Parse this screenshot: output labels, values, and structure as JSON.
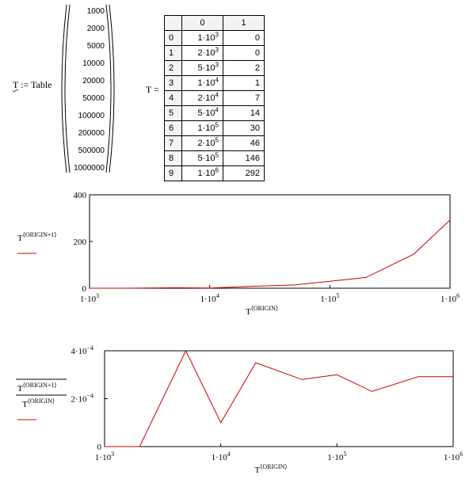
{
  "definition": {
    "var": "T",
    "assign": ":=",
    "func": "Table",
    "values": [
      "1000",
      "2000",
      "5000",
      "10000",
      "20000",
      "50000",
      "100000",
      "200000",
      "500000",
      "1000000"
    ]
  },
  "result": {
    "label": "T =",
    "header": [
      "0",
      "1"
    ],
    "rows": [
      {
        "i": "0",
        "a": "1·10",
        "ae": "3",
        "b": "0"
      },
      {
        "i": "1",
        "a": "2·10",
        "ae": "3",
        "b": "0"
      },
      {
        "i": "2",
        "a": "5·10",
        "ae": "3",
        "b": "2"
      },
      {
        "i": "3",
        "a": "1·10",
        "ae": "4",
        "b": "1"
      },
      {
        "i": "4",
        "a": "2·10",
        "ae": "4",
        "b": "7"
      },
      {
        "i": "5",
        "a": "5·10",
        "ae": "4",
        "b": "14"
      },
      {
        "i": "6",
        "a": "1·10",
        "ae": "5",
        "b": "30"
      },
      {
        "i": "7",
        "a": "2·10",
        "ae": "5",
        "b": "46"
      },
      {
        "i": "8",
        "a": "5·10",
        "ae": "5",
        "b": "146"
      },
      {
        "i": "9",
        "a": "1·10",
        "ae": "6",
        "b": "292"
      }
    ]
  },
  "chart_data": [
    {
      "type": "line",
      "xscale": "log",
      "x": [
        1000,
        2000,
        5000,
        10000,
        20000,
        50000,
        100000,
        200000,
        500000,
        1000000
      ],
      "series": [
        {
          "values": [
            0,
            0,
            2,
            1,
            7,
            14,
            30,
            46,
            146,
            292
          ],
          "color": "#cc0000"
        }
      ],
      "xlim": [
        1000,
        1000000
      ],
      "ylim": [
        0,
        400
      ],
      "xticks": [
        {
          "m": "1·10",
          "e": "3"
        },
        {
          "m": "1·10",
          "e": "4"
        },
        {
          "m": "1·10",
          "e": "5"
        },
        {
          "m": "1·10",
          "e": "6"
        }
      ],
      "yticks": [
        "0",
        "200",
        "400"
      ],
      "ylabel": {
        "base": "T",
        "sup": "⟨ORIGIN+1⟩"
      },
      "xlabel": {
        "base": "T",
        "sup": "⟨ORIGIN⟩"
      }
    },
    {
      "type": "line",
      "xscale": "log",
      "x": [
        1000,
        2000,
        5000,
        10000,
        20000,
        50000,
        100000,
        200000,
        500000,
        1000000
      ],
      "series": [
        {
          "values": [
            0,
            0,
            0.0004,
            0.0001,
            0.00035,
            0.00028,
            0.0003,
            0.00023,
            0.000292,
            0.000292
          ],
          "color": "#cc0000"
        }
      ],
      "xlim": [
        1000,
        1000000
      ],
      "ylim": [
        0,
        0.0004
      ],
      "xticks": [
        {
          "m": "1·10",
          "e": "3"
        },
        {
          "m": "1·10",
          "e": "4"
        },
        {
          "m": "1·10",
          "e": "5"
        },
        {
          "m": "1·10",
          "e": "6"
        }
      ],
      "yticks": [
        {
          "m": "0",
          "e": ""
        },
        {
          "m": "2·10",
          "e": "−4"
        },
        {
          "m": "4·10",
          "e": "−4"
        }
      ],
      "ylabel_num": {
        "base": "T",
        "sup": "⟨ORIGIN+1⟩"
      },
      "ylabel_den": {
        "base": "T",
        "sup": "⟨ORIGIN⟩"
      },
      "xlabel": {
        "base": "T",
        "sup": "⟨ORIGIN⟩"
      }
    }
  ]
}
